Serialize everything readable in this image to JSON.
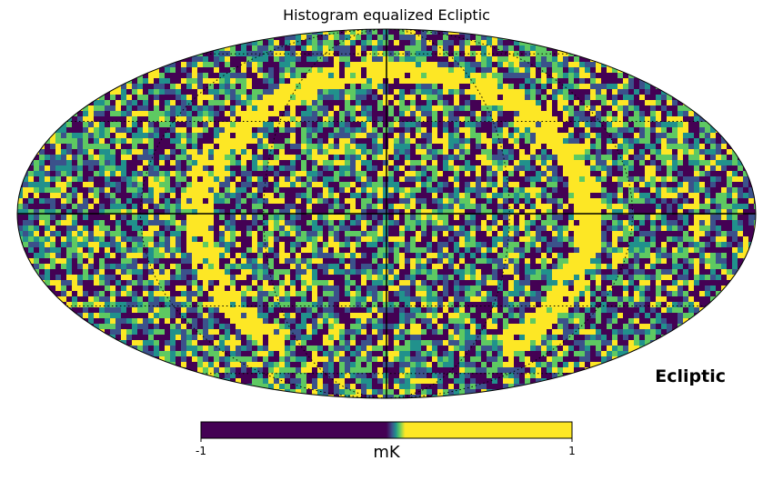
{
  "chart_data": {
    "type": "heatmap",
    "projection": "mollweide",
    "title": "Histogram equalized Ecliptic",
    "coordinate_label": "Ecliptic",
    "norm": "hist",
    "colormap": "viridis",
    "colorbar": {
      "min": -1,
      "max": 1,
      "tick_labels": [
        "-1",
        "1"
      ],
      "unit": "mK",
      "colors": [
        "#440154",
        "#3b528b",
        "#21918c",
        "#5ec962",
        "#fde725"
      ]
    },
    "graticule": true,
    "features": [
      {
        "name": "bright arc",
        "value": 1,
        "description": "yellow ring feature spanning the map"
      }
    ]
  }
}
